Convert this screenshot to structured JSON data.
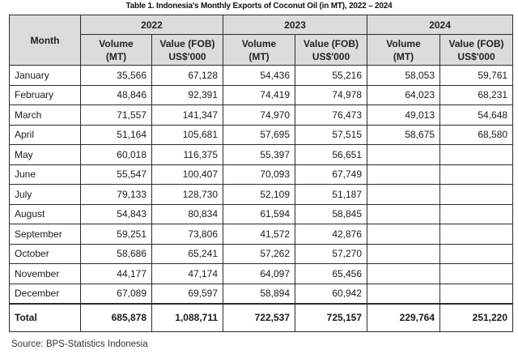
{
  "title": "Table 1. Indonesia's Monthly Exports of Coconut Oil (in MT), 2022 – 2024",
  "header": {
    "month": "Month",
    "years": [
      "2022",
      "2023",
      "2024"
    ],
    "volume_line1": "Volume",
    "volume_line2": "(MT)",
    "value_line1": "Value (FOB)",
    "value_line2": "US$'000"
  },
  "rows": [
    {
      "month": "January",
      "v2022": "35,566",
      "f2022": "67,128",
      "v2023": "54,436",
      "f2023": "55,216",
      "v2024": "58,053",
      "f2024": "59,761"
    },
    {
      "month": "February",
      "v2022": "48,846",
      "f2022": "92,391",
      "v2023": "74,419",
      "f2023": "74,978",
      "v2024": "64,023",
      "f2024": "68,231"
    },
    {
      "month": "March",
      "v2022": "71,557",
      "f2022": "141,347",
      "v2023": "74,970",
      "f2023": "76,473",
      "v2024": "49,013",
      "f2024": "54,648"
    },
    {
      "month": "April",
      "v2022": "51,164",
      "f2022": "105,681",
      "v2023": "57,695",
      "f2023": "57,515",
      "v2024": "58,675",
      "f2024": "68,580"
    },
    {
      "month": "May",
      "v2022": "60,018",
      "f2022": "116,375",
      "v2023": "55,397",
      "f2023": "56,651",
      "v2024": "",
      "f2024": ""
    },
    {
      "month": "June",
      "v2022": "55,547",
      "f2022": "100,407",
      "v2023": "70,093",
      "f2023": "67,749",
      "v2024": "",
      "f2024": ""
    },
    {
      "month": "July",
      "v2022": "79,133",
      "f2022": "128,730",
      "v2023": "52,109",
      "f2023": "51,187",
      "v2024": "",
      "f2024": ""
    },
    {
      "month": "August",
      "v2022": "54,843",
      "f2022": "80,834",
      "v2023": "61,594",
      "f2023": "58,845",
      "v2024": "",
      "f2024": ""
    },
    {
      "month": "September",
      "v2022": "59,251",
      "f2022": "73,806",
      "v2023": "41,572",
      "f2023": "42,876",
      "v2024": "",
      "f2024": ""
    },
    {
      "month": "October",
      "v2022": "58,686",
      "f2022": "65,241",
      "v2023": "57,262",
      "f2023": "57,270",
      "v2024": "",
      "f2024": ""
    },
    {
      "month": "November",
      "v2022": "44,177",
      "f2022": "47,174",
      "v2023": "64,097",
      "f2023": "65,456",
      "v2024": "",
      "f2024": ""
    },
    {
      "month": "December",
      "v2022": "67,089",
      "f2022": "69,597",
      "v2023": "58,894",
      "f2023": "60,942",
      "v2024": "",
      "f2024": ""
    }
  ],
  "total": {
    "label": "Total",
    "v2022": "685,878",
    "f2022": "1,088,711",
    "v2023": "722,537",
    "f2023": "725,157",
    "v2024": "229,764",
    "f2024": "251,220"
  },
  "source": "Source: BPS-Statistics Indonesia",
  "colors": {
    "header_bg": "#dcdcdc",
    "border": "#2b2b2b"
  }
}
